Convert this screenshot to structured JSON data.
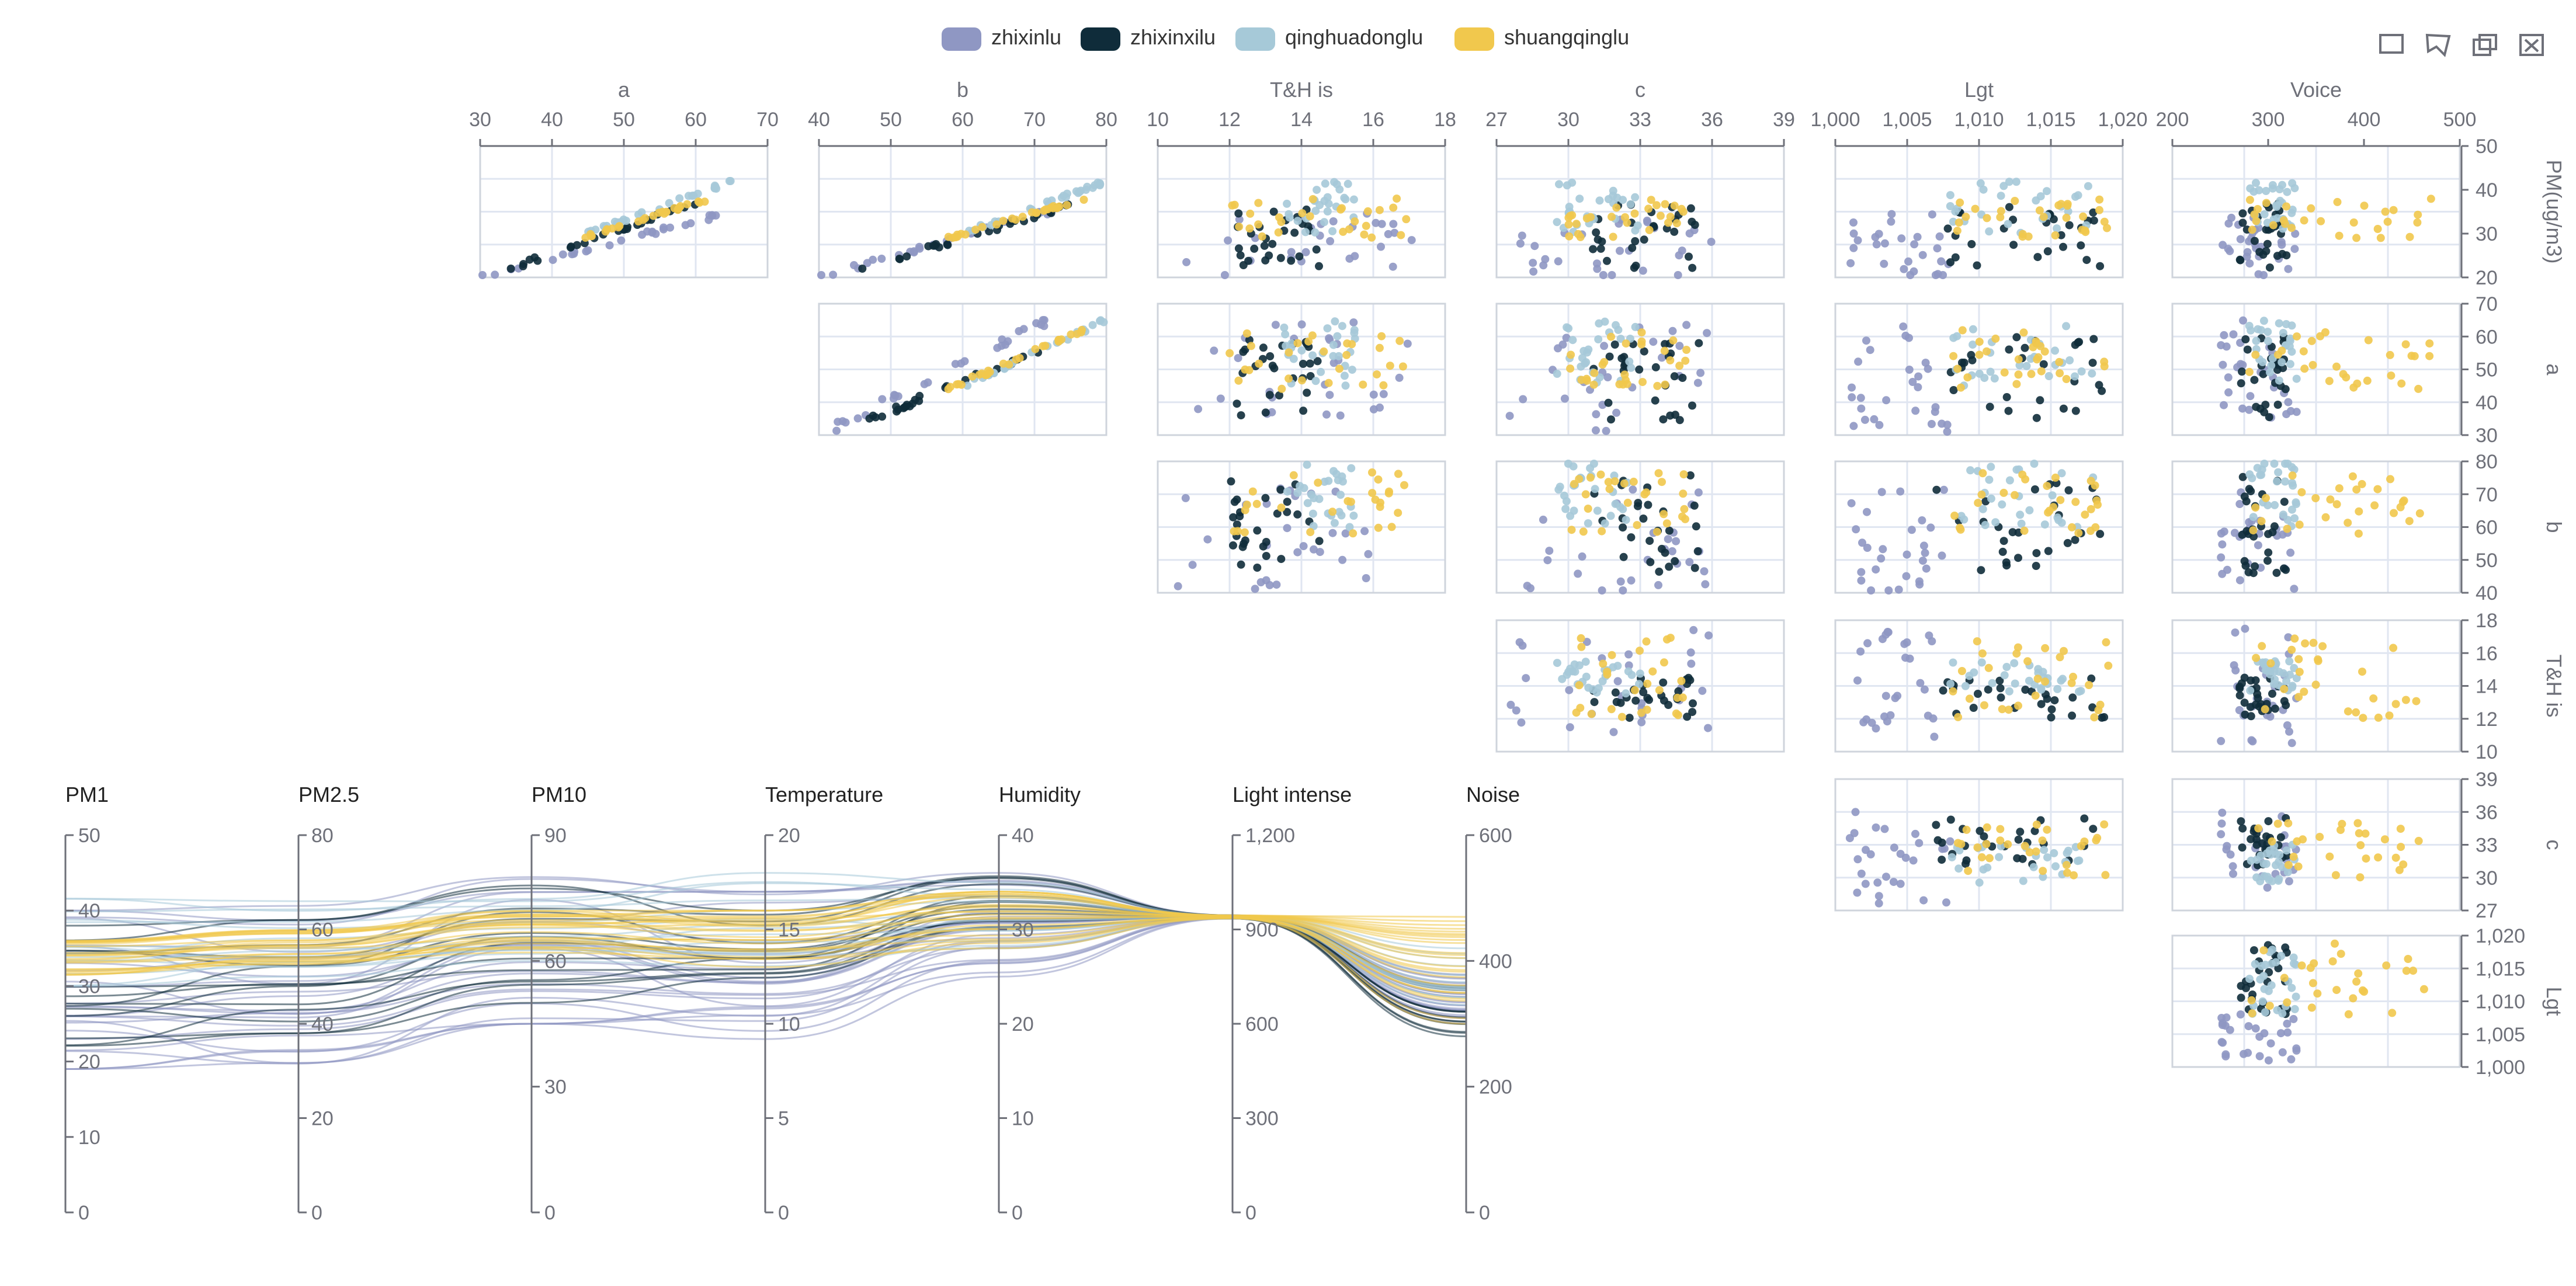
{
  "toolbox": {
    "items": [
      {
        "name": "brush-rect-icon"
      },
      {
        "name": "brush-polygon-icon"
      },
      {
        "name": "brush-keep-icon"
      },
      {
        "name": "brush-clear-icon"
      }
    ]
  },
  "chart_data": [
    {
      "type": "scatter-matrix",
      "title": "",
      "legend": {
        "position": "top-center",
        "items": [
          {
            "name": "zhixinlu",
            "color": "#8f97c3"
          },
          {
            "name": "zhixinxilu",
            "color": "#0f2c3a"
          },
          {
            "name": "qinghuadonglu",
            "color": "#a6c9d8"
          },
          {
            "name": "shuangqinglu",
            "color": "#f1c84d"
          }
        ]
      },
      "columns": [
        {
          "label": "a",
          "ticks": [
            "30",
            "40",
            "50",
            "60",
            "70"
          ],
          "range": [
            30,
            70
          ]
        },
        {
          "label": "b",
          "ticks": [
            "40",
            "50",
            "60",
            "70",
            "80"
          ],
          "range": [
            40,
            80
          ]
        },
        {
          "label": "T&H is",
          "ticks": [
            "10",
            "12",
            "14",
            "16",
            "18"
          ],
          "range": [
            10,
            18
          ]
        },
        {
          "label": "c",
          "ticks": [
            "27",
            "30",
            "33",
            "36",
            "39"
          ],
          "range": [
            27,
            39
          ]
        },
        {
          "label": "Lgt",
          "ticks": [
            "1,000",
            "1,005",
            "1,010",
            "1,015",
            "1,020"
          ],
          "range": [
            1000,
            1020
          ]
        },
        {
          "label": "Voice",
          "ticks": [
            "200",
            "300",
            "400",
            "500"
          ],
          "range": [
            200,
            500
          ]
        }
      ],
      "rows": [
        {
          "label": "PM(ug/m3)",
          "ticks": [
            "50",
            "40",
            "30",
            "20"
          ],
          "range": [
            20,
            50
          ]
        },
        {
          "label": "a",
          "ticks": [
            "70",
            "60",
            "50",
            "40",
            "30"
          ],
          "range": [
            30,
            70
          ]
        },
        {
          "label": "b",
          "ticks": [
            "80",
            "70",
            "60",
            "50",
            "40"
          ],
          "range": [
            40,
            80
          ]
        },
        {
          "label": "T&H is",
          "ticks": [
            "18",
            "16",
            "14",
            "12",
            "10"
          ],
          "range": [
            10,
            18
          ]
        },
        {
          "label": "c",
          "ticks": [
            "39",
            "36",
            "33",
            "30",
            "27"
          ],
          "range": [
            27,
            39
          ]
        },
        {
          "label": "Lgt",
          "ticks": [
            "1,020",
            "1,015",
            "1,010",
            "1,005",
            "1,000"
          ],
          "range": [
            1000,
            1020
          ]
        }
      ],
      "series_profiles": {
        "zhixinlu": {
          "a": [
            30,
            65
          ],
          "b": [
            40,
            72
          ],
          "T&H is": [
            10.5,
            17.5
          ],
          "c": [
            27.5,
            36
          ],
          "Lgt": [
            1001,
            1008
          ],
          "Voice": [
            250,
            330
          ],
          "PM(ug/m3)": [
            20,
            35
          ]
        },
        "zhixinxilu": {
          "a": [
            34,
            60
          ],
          "b": [
            46,
            76
          ],
          "T&H is": [
            12,
            14.5
          ],
          "c": [
            31,
            35.5
          ],
          "Lgt": [
            1007,
            1019
          ],
          "Voice": [
            270,
            320
          ],
          "PM(ug/m3)": [
            22,
            37
          ]
        },
        "qinghuadonglu": {
          "a": [
            45,
            65
          ],
          "b": [
            60,
            80
          ],
          "T&H is": [
            13.5,
            15.5
          ],
          "c": [
            29.5,
            33
          ],
          "Lgt": [
            1008,
            1018
          ],
          "Voice": [
            280,
            330
          ],
          "PM(ug/m3)": [
            30,
            42
          ]
        },
        "shuangqinglu": {
          "a": [
            44,
            62
          ],
          "b": [
            58,
            77
          ],
          "T&H is": [
            12,
            17
          ],
          "c": [
            30,
            35
          ],
          "Lgt": [
            1008,
            1019
          ],
          "Voice": [
            280,
            470
          ],
          "PM(ug/m3)": [
            29,
            38
          ]
        }
      }
    },
    {
      "type": "parallel",
      "axes": [
        {
          "name": "PM1",
          "ticks": [
            "50",
            "40",
            "30",
            "20",
            "10",
            "0"
          ],
          "range": [
            0,
            50
          ]
        },
        {
          "name": "PM2.5",
          "ticks": [
            "80",
            "60",
            "40",
            "20",
            "0"
          ],
          "range": [
            0,
            80
          ]
        },
        {
          "name": "PM10",
          "ticks": [
            "90",
            "60",
            "30",
            "0"
          ],
          "range": [
            0,
            90
          ]
        },
        {
          "name": "Temperature",
          "ticks": [
            "20",
            "15",
            "10",
            "5",
            "0"
          ],
          "range": [
            0,
            20
          ]
        },
        {
          "name": "Humidity",
          "ticks": [
            "40",
            "30",
            "20",
            "10",
            "0"
          ],
          "range": [
            0,
            40
          ]
        },
        {
          "name": "Light intense",
          "ticks": [
            "1,200",
            "900",
            "600",
            "300",
            "0"
          ],
          "range": [
            0,
            1200
          ]
        },
        {
          "name": "Noise",
          "ticks": [
            "600",
            "400",
            "200",
            "0"
          ],
          "range": [
            0,
            600
          ]
        }
      ],
      "series": [
        {
          "name": "zhixinlu",
          "color": "#8f97c3",
          "count": 26,
          "ranges": [
            [
              19,
              40
            ],
            [
              30,
              65
            ],
            [
              45,
              80
            ],
            [
              9,
              17
            ],
            [
              25,
              36
            ],
            [
              935,
              945
            ],
            [
              300,
              380
            ]
          ]
        },
        {
          "name": "zhixinxilu",
          "color": "#0f2c3a",
          "count": 14,
          "ranges": [
            [
              22,
              38
            ],
            [
              38,
              62
            ],
            [
              50,
              78
            ],
            [
              12,
              16
            ],
            [
              30,
              36
            ],
            [
              935,
              945
            ],
            [
              280,
              360
            ]
          ]
        },
        {
          "name": "qinghuadonglu",
          "color": "#a6c9d8",
          "count": 14,
          "ranges": [
            [
              30,
              42
            ],
            [
              50,
              66
            ],
            [
              60,
              76
            ],
            [
              13,
              18
            ],
            [
              28,
              35
            ],
            [
              935,
              945
            ],
            [
              330,
              420
            ]
          ]
        },
        {
          "name": "shuangqinglu",
          "color": "#f1c84d",
          "count": 24,
          "ranges": [
            [
              31,
              36
            ],
            [
              52,
              60
            ],
            [
              62,
              72
            ],
            [
              13,
              16
            ],
            [
              28,
              34
            ],
            [
              935,
              945
            ],
            [
              300,
              470
            ]
          ]
        }
      ]
    }
  ]
}
